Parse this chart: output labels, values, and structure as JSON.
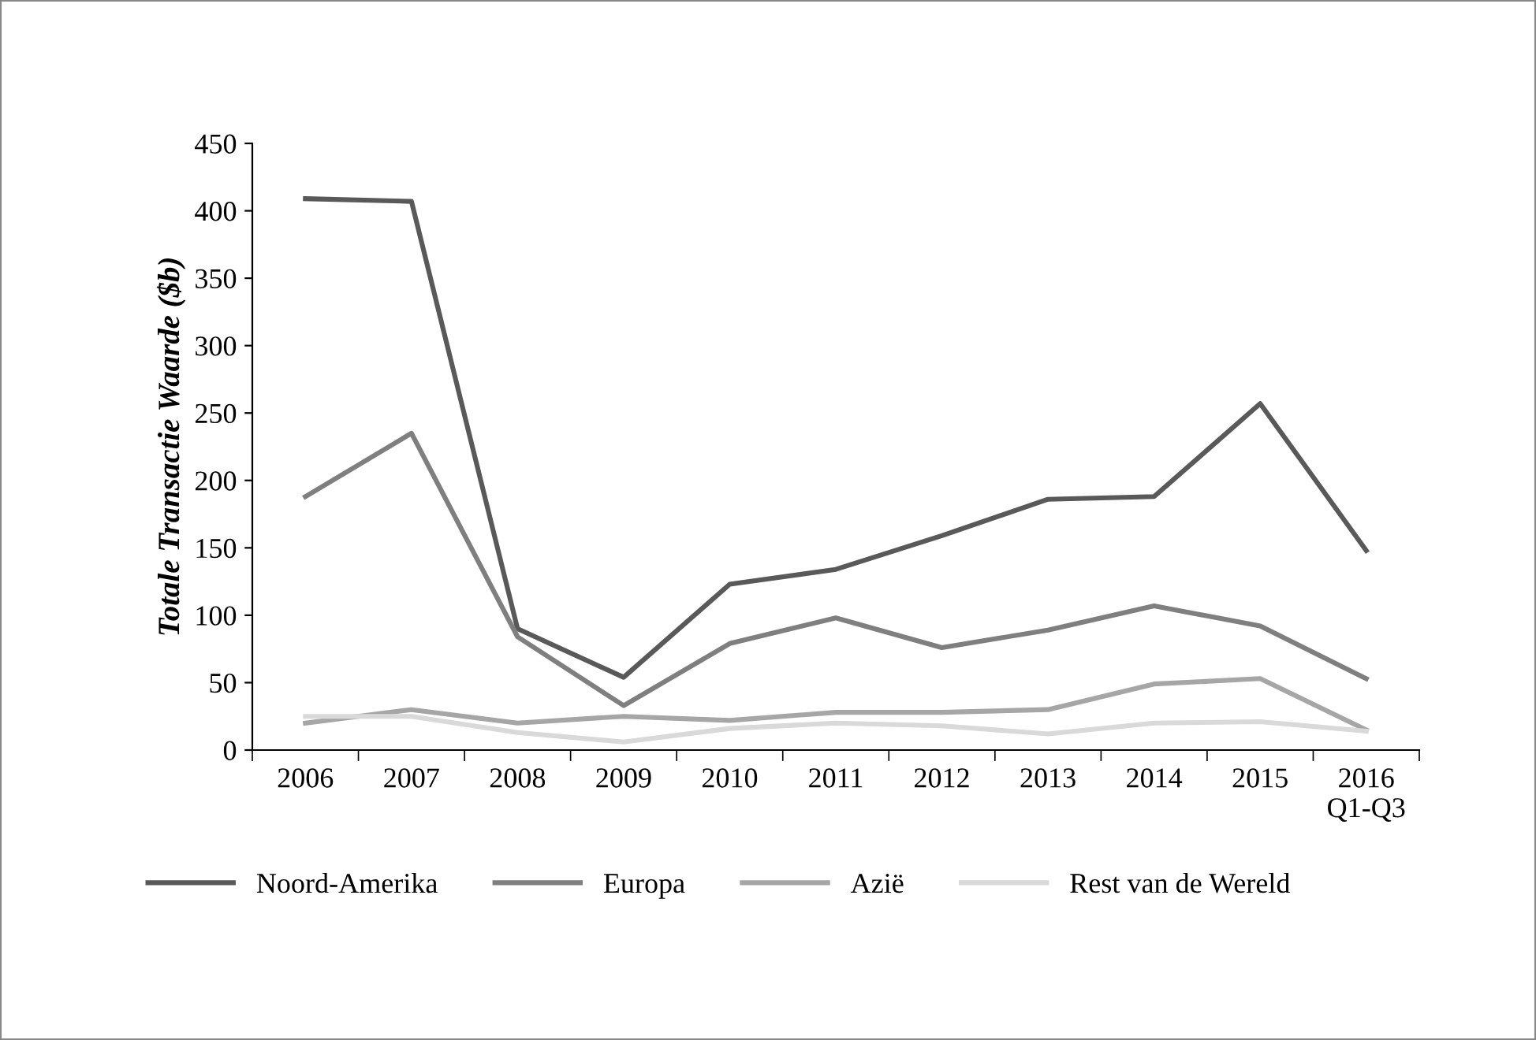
{
  "chart_data": {
    "type": "line",
    "ylabel": "Totale Transactie Waarde ($b)",
    "categories": [
      "2006",
      "2007",
      "2008",
      "2009",
      "2010",
      "2011",
      "2012",
      "2013",
      "2014",
      "2015",
      "2016\nQ1-Q3"
    ],
    "series": [
      {
        "name": "Noord-Amerika",
        "color": "#595959",
        "values": [
          409,
          407,
          90,
          54,
          123,
          134,
          159,
          186,
          188,
          257,
          148
        ]
      },
      {
        "name": "Europa",
        "color": "#7f7f7f",
        "values": [
          188,
          235,
          84,
          33,
          79,
          98,
          76,
          89,
          107,
          92,
          53
        ]
      },
      {
        "name": "Azië",
        "color": "#a6a6a6",
        "values": [
          20,
          30,
          20,
          25,
          22,
          28,
          28,
          30,
          49,
          53,
          15
        ]
      },
      {
        "name": "Rest van de Wereld",
        "color": "#d9d9d9",
        "values": [
          25,
          25,
          13,
          6,
          16,
          20,
          18,
          12,
          20,
          21,
          14
        ]
      }
    ],
    "ylim": [
      0,
      450
    ],
    "yticks": [
      0,
      50,
      100,
      150,
      200,
      250,
      300,
      350,
      400,
      450
    ],
    "grid": false,
    "legend": "bottom",
    "marker": "none",
    "line_style": "solid"
  }
}
